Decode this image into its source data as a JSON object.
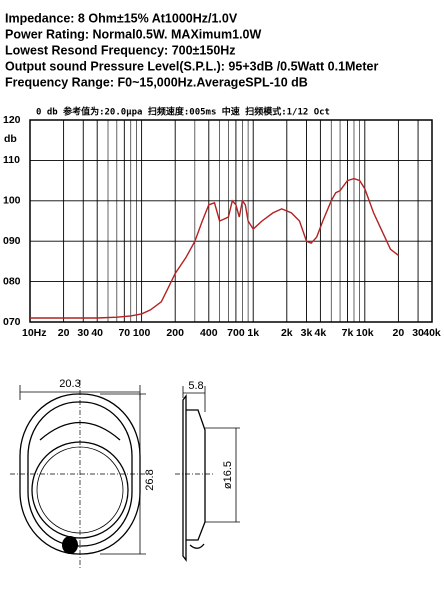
{
  "specs": [
    "Impedance: 8 Ohm±15%  At1000Hz/1.0V",
    "Power Rating: Normal0.5W. MAXimum1.0W",
    "Lowest Resond Frequency: 700±150Hz",
    "Output sound Pressure Level(S.P.L.): 95+3dB /0.5Watt 0.1Meter",
    "Frequency Range: F0~15,000Hz.AverageSPL-10 dB"
  ],
  "chart_data": {
    "type": "line",
    "subtitle": "0 db  参考值为:20.0μpa   扫频速度:005ms  中速   扫频模式:1/12  Oct",
    "ylabel": "db",
    "xscale": "log",
    "xlim": [
      10,
      40000
    ],
    "ylim": [
      70,
      120
    ],
    "xticks": [
      {
        "value": 10,
        "label": "10Hz"
      },
      20,
      30,
      40,
      70,
      100,
      200,
      400,
      700,
      {
        "value": 1000,
        "label": "1k"
      },
      {
        "value": 2000,
        "label": "2k"
      },
      {
        "value": 3000,
        "label": "3k"
      },
      {
        "value": 4000,
        "label": "4k"
      },
      {
        "value": 7000,
        "label": "7k"
      },
      {
        "value": 10000,
        "label": "10k"
      },
      {
        "value": 20000,
        "label": "20"
      },
      {
        "value": 30000,
        "label": "30"
      },
      {
        "value": 40000,
        "label": "40k"
      }
    ],
    "x_minor_grid": [
      50,
      60,
      80,
      90,
      300,
      500,
      600,
      800,
      900,
      5000,
      6000,
      8000,
      9000
    ],
    "yticks": [
      {
        "value": 70,
        "label": "070"
      },
      {
        "value": 80,
        "label": "080"
      },
      {
        "value": 90,
        "label": "090"
      },
      100,
      110,
      120
    ],
    "grid": true,
    "x": [
      10,
      20,
      40,
      60,
      80,
      100,
      120,
      150,
      170,
      200,
      250,
      300,
      350,
      400,
      450,
      500,
      550,
      600,
      650,
      700,
      750,
      800,
      850,
      900,
      1000,
      1200,
      1500,
      1800,
      2200,
      2600,
      3000,
      3300,
      3700,
      4200,
      5000,
      5500,
      6000,
      7000,
      8000,
      9000,
      10000,
      12000,
      14000,
      17000,
      20000
    ],
    "series": [
      {
        "color": "#b22222",
        "values": [
          71,
          71,
          71,
          71.2,
          71.5,
          72,
          73,
          75,
          78,
          82,
          86,
          90,
          95,
          99,
          99.5,
          95,
          95.5,
          96,
          100,
          99,
          96,
          100,
          99,
          95,
          93,
          95,
          97,
          98,
          97,
          95,
          90,
          89.5,
          91,
          95,
          100,
          102,
          102.5,
          105,
          105.5,
          105,
          103,
          97,
          93,
          88,
          86.5
        ]
      }
    ]
  },
  "drawing": {
    "width": "20.3",
    "height": "26.8",
    "depth": "5.8",
    "diameter": "ø16.5"
  }
}
